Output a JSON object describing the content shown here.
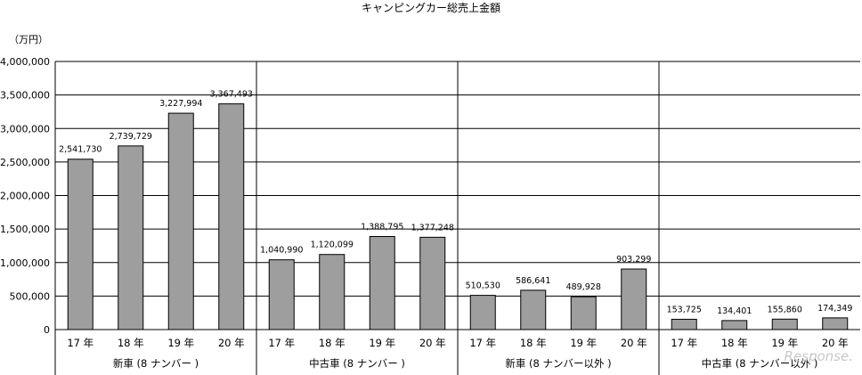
{
  "chart_data": {
    "type": "bar",
    "title": "キャンピングカー総売上金額",
    "unit": "（万円）",
    "ylim": [
      0,
      4000000
    ],
    "y_ticks": [
      0,
      500000,
      1000000,
      1500000,
      2000000,
      2500000,
      3000000,
      3500000,
      4000000
    ],
    "y_tick_labels": [
      "0",
      "500,000",
      "1,000,000",
      "1,500,000",
      "2,000,000",
      "2,500,000",
      "3,000,000",
      "3,500,000",
      "4,000,000"
    ],
    "grid": true,
    "bar_color": "#9e9e9e",
    "groups": [
      {
        "name": "新車 (8 ナンバー )",
        "categories": [
          "17 年",
          "18 年",
          "19 年",
          "20 年"
        ],
        "values": [
          2541730,
          2739729,
          3227994,
          3367493
        ],
        "labels": [
          "2,541,730",
          "2,739,729",
          "3,227,994",
          "3,367,493"
        ]
      },
      {
        "name": "中古車 (8 ナンバー )",
        "categories": [
          "17 年",
          "18 年",
          "19 年",
          "20 年"
        ],
        "values": [
          1040990,
          1120099,
          1388795,
          1377248
        ],
        "labels": [
          "1,040,990",
          "1,120,099",
          "1,388,795",
          "1,377,248"
        ]
      },
      {
        "name": "新車 (8 ナンバー以外 )",
        "categories": [
          "17 年",
          "18 年",
          "19 年",
          "20 年"
        ],
        "values": [
          510530,
          586641,
          489928,
          903299
        ],
        "labels": [
          "510,530",
          "586,641",
          "489,928",
          "903,299"
        ]
      },
      {
        "name": "中古車 (8 ナンバー以外 )",
        "categories": [
          "17 年",
          "18 年",
          "19 年",
          "20 年"
        ],
        "values": [
          153725,
          134401,
          155860,
          174349
        ],
        "labels": [
          "153,725",
          "134,401",
          "155,860",
          "174,349"
        ]
      }
    ]
  },
  "watermark": "Response."
}
